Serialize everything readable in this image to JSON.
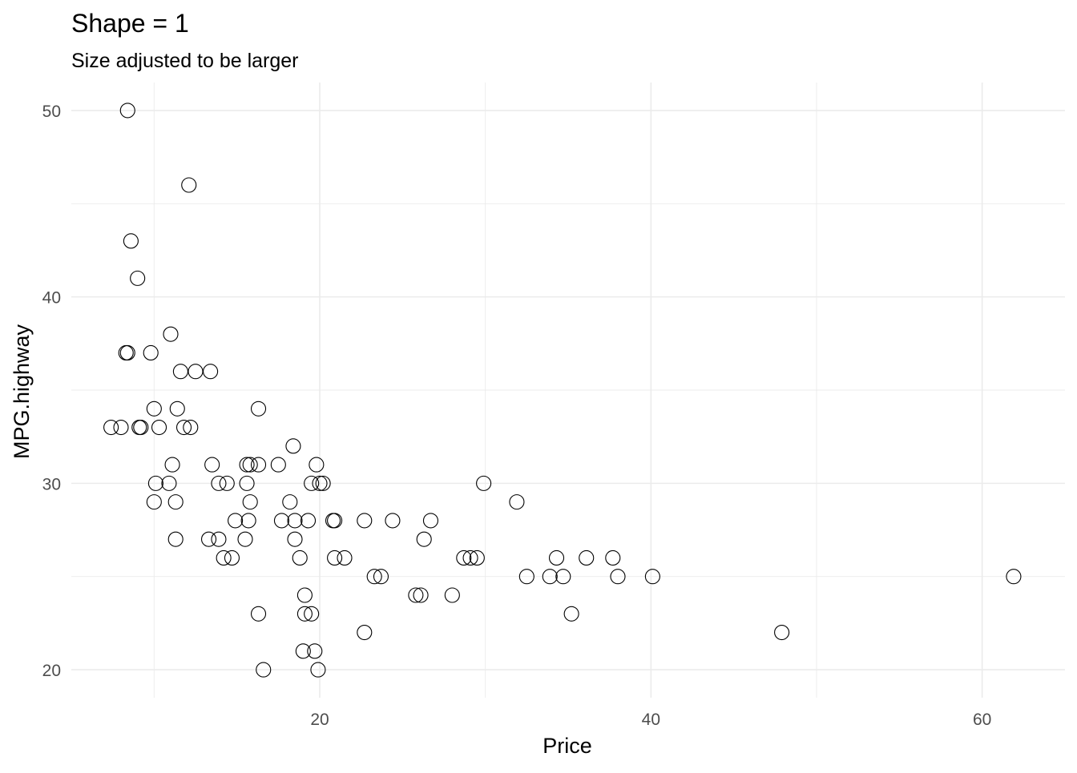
{
  "chart_data": {
    "type": "scatter",
    "title": "Shape = 1",
    "subtitle": "Size adjusted to be larger",
    "xlabel": "Price",
    "ylabel": "MPG.highway",
    "xlim": [
      5,
      65
    ],
    "ylim": [
      18.5,
      51.5
    ],
    "x_ticks": [
      20,
      40,
      60
    ],
    "y_ticks": [
      20,
      30,
      40,
      50
    ],
    "x_minor_ticks": [
      10,
      30,
      50
    ],
    "y_minor_ticks": [
      25,
      35,
      45
    ],
    "grid": true,
    "legend": "none",
    "marker": "open-circle",
    "point_color": "#000000",
    "grid_color": "#ebebeb",
    "series": [
      {
        "points": [
          [
            8.4,
            50
          ],
          [
            12.1,
            46
          ],
          [
            8.6,
            43
          ],
          [
            9.0,
            41
          ],
          [
            11.0,
            38
          ],
          [
            8.3,
            37
          ],
          [
            8.4,
            37
          ],
          [
            9.8,
            37
          ],
          [
            11.6,
            36
          ],
          [
            12.5,
            36
          ],
          [
            13.4,
            36
          ],
          [
            16.3,
            34
          ],
          [
            11.4,
            34
          ],
          [
            10.0,
            34
          ],
          [
            7.4,
            33
          ],
          [
            8.0,
            33
          ],
          [
            9.1,
            33
          ],
          [
            9.2,
            33
          ],
          [
            10.3,
            33
          ],
          [
            11.8,
            33
          ],
          [
            12.2,
            33
          ],
          [
            18.4,
            32
          ],
          [
            11.1,
            31
          ],
          [
            13.5,
            31
          ],
          [
            15.6,
            31
          ],
          [
            15.8,
            31
          ],
          [
            16.3,
            31
          ],
          [
            17.5,
            31
          ],
          [
            19.8,
            31
          ],
          [
            10.1,
            30
          ],
          [
            10.9,
            30
          ],
          [
            13.9,
            30
          ],
          [
            14.4,
            30
          ],
          [
            15.6,
            30
          ],
          [
            19.5,
            30
          ],
          [
            20.0,
            30
          ],
          [
            20.2,
            30
          ],
          [
            29.9,
            30
          ],
          [
            10.0,
            29
          ],
          [
            11.3,
            29
          ],
          [
            15.8,
            29
          ],
          [
            18.2,
            29
          ],
          [
            31.9,
            29
          ],
          [
            14.9,
            28
          ],
          [
            15.7,
            28
          ],
          [
            17.7,
            28
          ],
          [
            18.5,
            28
          ],
          [
            19.3,
            28
          ],
          [
            20.8,
            28
          ],
          [
            20.9,
            28
          ],
          [
            22.7,
            28
          ],
          [
            24.4,
            28
          ],
          [
            26.7,
            28
          ],
          [
            11.3,
            27
          ],
          [
            13.3,
            27
          ],
          [
            13.9,
            27
          ],
          [
            15.5,
            27
          ],
          [
            18.5,
            27
          ],
          [
            26.3,
            27
          ],
          [
            14.2,
            26
          ],
          [
            14.7,
            26
          ],
          [
            18.8,
            26
          ],
          [
            20.9,
            26
          ],
          [
            21.5,
            26
          ],
          [
            28.7,
            26
          ],
          [
            29.1,
            26
          ],
          [
            29.5,
            26
          ],
          [
            34.3,
            26
          ],
          [
            36.1,
            26
          ],
          [
            37.7,
            26
          ],
          [
            23.3,
            25
          ],
          [
            23.7,
            25
          ],
          [
            32.5,
            25
          ],
          [
            33.9,
            25
          ],
          [
            34.7,
            25
          ],
          [
            38.0,
            25
          ],
          [
            40.1,
            25
          ],
          [
            61.9,
            25
          ],
          [
            19.1,
            24
          ],
          [
            26.1,
            24
          ],
          [
            25.8,
            24
          ],
          [
            28.0,
            24
          ],
          [
            16.3,
            23
          ],
          [
            19.1,
            23
          ],
          [
            19.5,
            23
          ],
          [
            35.2,
            23
          ],
          [
            22.7,
            22
          ],
          [
            47.9,
            22
          ],
          [
            19.0,
            21
          ],
          [
            19.7,
            21
          ],
          [
            16.6,
            20
          ],
          [
            19.9,
            20
          ]
        ]
      }
    ]
  }
}
